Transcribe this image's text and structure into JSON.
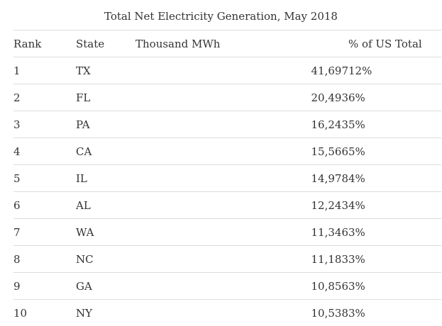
{
  "table": {
    "caption": "Total Net Electricity Generation, May 2018",
    "columns": [
      "Rank",
      "State",
      "Thousand MWh",
      "% of US Total"
    ],
    "rows": [
      {
        "rank": "1",
        "state": "TX",
        "generation": "41,697",
        "percent": "12%"
      },
      {
        "rank": "2",
        "state": "FL",
        "generation": "20,493",
        "percent": "6%"
      },
      {
        "rank": "3",
        "state": "PA",
        "generation": "16,243",
        "percent": "5%"
      },
      {
        "rank": "4",
        "state": "CA",
        "generation": "15,566",
        "percent": "5%"
      },
      {
        "rank": "5",
        "state": "IL",
        "generation": "14,978",
        "percent": "4%"
      },
      {
        "rank": "6",
        "state": "AL",
        "generation": "12,243",
        "percent": "4%"
      },
      {
        "rank": "7",
        "state": "WA",
        "generation": "11,346",
        "percent": "3%"
      },
      {
        "rank": "8",
        "state": "NC",
        "generation": "11,183",
        "percent": "3%"
      },
      {
        "rank": "9",
        "state": "GA",
        "generation": "10,856",
        "percent": "3%"
      },
      {
        "rank": "10",
        "state": "NY",
        "generation": "10,538",
        "percent": "3%"
      }
    ]
  }
}
